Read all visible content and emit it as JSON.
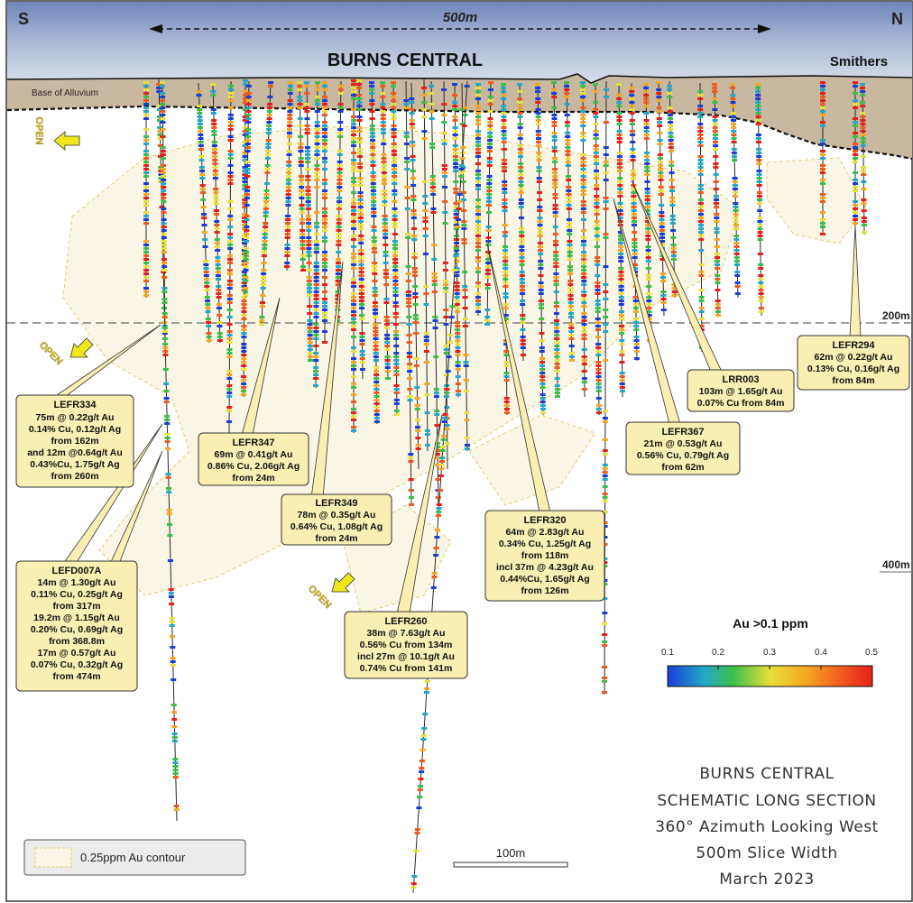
{
  "header": {
    "south": "S",
    "north": "N",
    "scale_top": "500m",
    "title": "BURNS CENTRAL",
    "smithers": "Smithers",
    "alluvium": "Base of Alluvium"
  },
  "depth_labels": [
    "200m",
    "400m"
  ],
  "open_label": "OPEN",
  "callouts": [
    {
      "id": "LEFR334",
      "lines": [
        "LEFR334",
        "75m @ 0.22g/t Au",
        "0.14% Cu, 0.12g/t Ag",
        "from 162m",
        "and 12m @0.64g/t Au",
        "0.43%Cu, 1.75g/t Ag",
        "from 260m"
      ]
    },
    {
      "id": "LEFR347",
      "lines": [
        "LEFR347",
        "69m @ 0.41g/t Au",
        "0.86% Cu, 2.06g/t Ag",
        "from 24m"
      ]
    },
    {
      "id": "LEFR349",
      "lines": [
        "LEFR349",
        "78m @ 0.35g/t Au",
        "0.64% Cu, 1.08g/t Ag",
        "from 24m"
      ]
    },
    {
      "id": "LEFR320",
      "lines": [
        "LEFR320",
        "64m @ 2.83g/t Au",
        "0.34% Cu, 1.25g/t Ag",
        "from 118m",
        "incl 37m @ 4.23g/t Au",
        "0.44%Cu, 1.65g/t Ag",
        "from 126m"
      ]
    },
    {
      "id": "LRR003",
      "lines": [
        "LRR003",
        "103m @ 1.65g/t Au",
        "0.07% Cu from 84m"
      ]
    },
    {
      "id": "LEFR367",
      "lines": [
        "LEFR367",
        "21m @ 0.53g/t Au",
        "0.56% Cu, 0.79g/t Ag",
        "from 62m"
      ]
    },
    {
      "id": "LEFR294",
      "lines": [
        "LEFR294",
        "62m @ 0.22g/t Au",
        "0.13% Cu, 0.16g/t Ag",
        "from 84m"
      ]
    },
    {
      "id": "LEFD007A",
      "lines": [
        "LEFD007A",
        "14m @ 1.30g/t Au",
        "0.11% Cu, 0.25g/t Ag",
        "from 317m",
        "19.2m @ 1.15g/t Au",
        "0.20% Cu, 0.69g/t Ag",
        "from 368.8m",
        "17m @ 0.57g/t Au",
        "0.07% Cu, 0.32g/t Ag",
        "from 474m"
      ]
    },
    {
      "id": "LEFR260",
      "lines": [
        "LEFR260",
        "38m @ 7.63g/t Au",
        "0.56% Cu from 134m",
        "incl 27m @ 10.1g/t Au",
        "0.74% Cu from 141m"
      ]
    }
  ],
  "legend": {
    "title": "Au >0.1 ppm",
    "ticks": [
      "0.1",
      "0.2",
      "0.3",
      "0.4",
      "0.5"
    ],
    "colors": [
      "#1a3fd6",
      "#23a8c8",
      "#3cbf4a",
      "#e8e03a",
      "#f5a623",
      "#f05a1e",
      "#e8201a"
    ],
    "contour_label": "0.25ppm Au contour"
  },
  "scale_bar": "100m",
  "caption": [
    "BURNS CENTRAL",
    "SCHEMATIC LONG SECTION",
    "360° Azimuth Looking West",
    "500m Slice Width",
    "March 2023"
  ],
  "colors": {
    "alluvium": "#c9b8a0",
    "callout_fill": "#f9efb3",
    "contour_fill": "#faf6e6",
    "contour_line": "#e5c96a",
    "arrow": "#f0e61c",
    "hole": "#2a2a2a"
  }
}
